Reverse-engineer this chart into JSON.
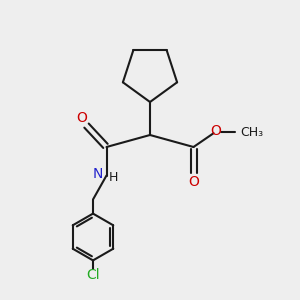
{
  "bg_color": "#eeeeee",
  "bond_color": "#1a1a1a",
  "o_color": "#cc0000",
  "n_color": "#2222cc",
  "cl_color": "#22aa22",
  "line_width": 1.5,
  "figsize": [
    3.0,
    3.0
  ],
  "dpi": 100,
  "xlim": [
    0,
    10
  ],
  "ylim": [
    0,
    10
  ]
}
